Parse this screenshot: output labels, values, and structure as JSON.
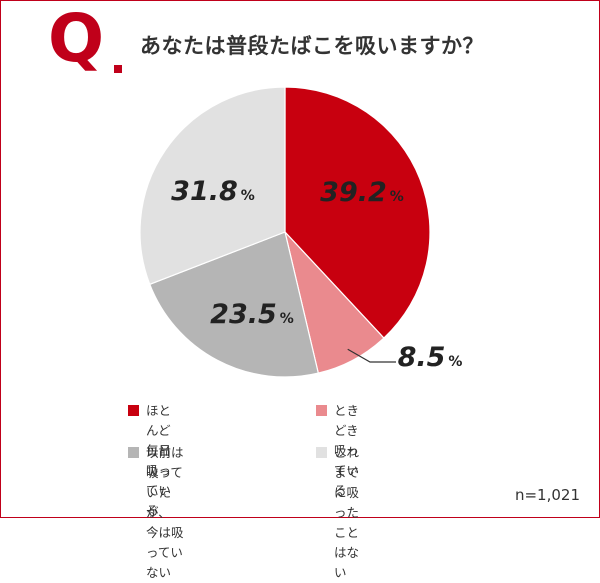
{
  "question": {
    "mark": "Q",
    "text": "あなたは普段たばこを吸いますか？"
  },
  "sample_size": "n=1,021",
  "chart_data": {
    "type": "pie",
    "title": "あなたは普段たばこを吸いますか？",
    "slices": [
      {
        "label": "ほとんど毎日吸っている",
        "value": 39.2,
        "display": "39.2",
        "color": "#c8000f"
      },
      {
        "label": "ときどき吸っている",
        "value": 8.5,
        "display": "8.5",
        "color": "#ea8a8e"
      },
      {
        "label": "以前は吸っていたが、\n今は吸っていない",
        "value": 23.5,
        "display": "23.5",
        "color": "#b5b5b5"
      },
      {
        "label": "これまでに吸ったことはない",
        "value": 31.8,
        "display": "31.8",
        "color": "#e1e1e1"
      }
    ],
    "percent_symbol": "%",
    "start_angle": "12 o'clock",
    "direction": "clockwise",
    "legend_position": "bottom"
  }
}
